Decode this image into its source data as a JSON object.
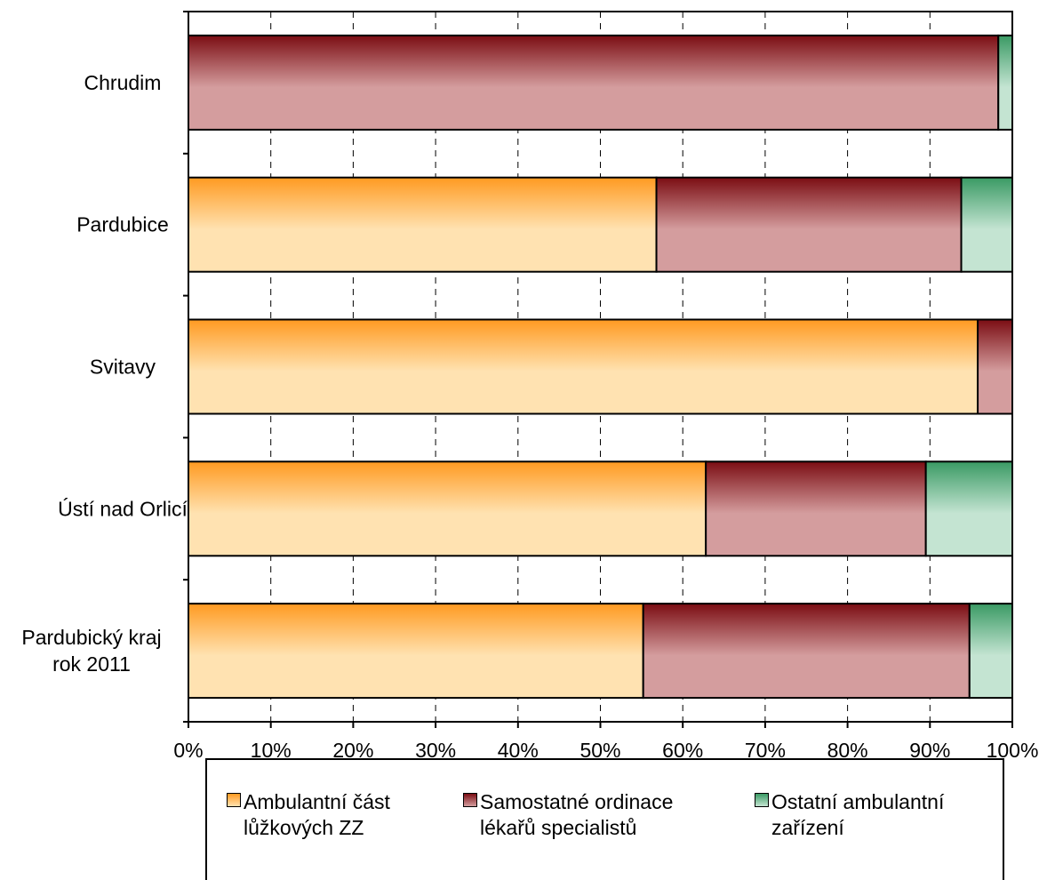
{
  "chart_data": {
    "type": "bar",
    "orientation": "horizontal",
    "stacked": "percent",
    "categories": [
      "Chrudim",
      "Pardubice",
      "Svitavy",
      "Ústí nad Orlicí",
      "Pardubický kraj\nrok 2011"
    ],
    "series": [
      {
        "name": "Ambulantní část\nlůžkových ZZ",
        "values": [
          0,
          56.8,
          95.8,
          62.8,
          55.2
        ],
        "color_top": "#ff9a21",
        "color_bottom": "#ffe2b1"
      },
      {
        "name": "Samostatné ordinace\nlékařů specialistů",
        "values": [
          98.3,
          37.0,
          4.2,
          26.7,
          39.6
        ],
        "color_top": "#7b0d13",
        "color_bottom": "#d49d9e"
      },
      {
        "name": "Ostatní ambulantní\nzařízení",
        "values": [
          1.7,
          6.2,
          0,
          10.5,
          5.2
        ],
        "color_top": "#3a9a64",
        "color_bottom": "#c4e4d2"
      }
    ],
    "x_ticks": [
      "0%",
      "10%",
      "20%",
      "30%",
      "40%",
      "50%",
      "60%",
      "70%",
      "80%",
      "90%",
      "100%"
    ],
    "xlim": [
      0,
      100
    ],
    "grid": "vertical dashed",
    "legend_position": "bottom"
  }
}
